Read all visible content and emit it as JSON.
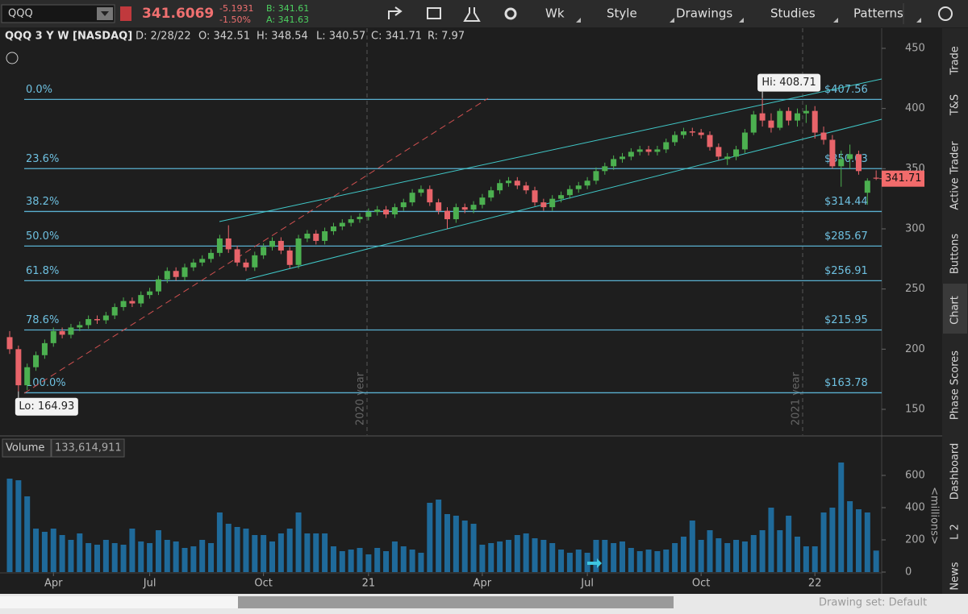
{
  "toolbar": {
    "symbol": "QQQ",
    "last": "341.6069",
    "change": "-5.1931",
    "change_pct": "-1.50%",
    "bid": "B: 341.61",
    "ask": "A: 341.63",
    "buttons": [
      "Wk",
      "Style",
      "Drawings",
      "Studies",
      "Patterns"
    ]
  },
  "header": {
    "title": "QQQ 3 Y W [NASDAQ]",
    "fields": [
      "D: 2/28/22",
      "O: 342.51",
      "H: 348.54",
      "L: 340.57",
      "C: 341.71",
      "R: 7.97"
    ]
  },
  "sidebar": [
    "Trade",
    "T&S",
    "Active Trader",
    "Buttons",
    "Chart",
    "Phase Scores",
    "Dashboard",
    "L 2",
    "News"
  ],
  "footer": {
    "drawing_set": "Drawing set: Default"
  },
  "chart_data": [
    {
      "type": "candlestick",
      "up_color": "#4cb050",
      "down_color": "#e8646a",
      "ylim": [
        128.57,
        466.74
      ],
      "yticks": [
        150,
        200,
        250,
        300,
        350,
        400,
        450
      ],
      "hi_label": "Hi: 408.71",
      "lo_label": "Lo: 164.93",
      "year_labels": [
        "2020 year",
        "2021 year"
      ],
      "fib_levels": [
        {
          "label": "0.0%",
          "value": 407.56,
          "price_label": "$407.56"
        },
        {
          "label": "23.6%",
          "value": 350.03,
          "price_label": "$350.03"
        },
        {
          "label": "38.2%",
          "value": 314.44,
          "price_label": "$314.44"
        },
        {
          "label": "50.0%",
          "value": 285.67,
          "price_label": "$285.67"
        },
        {
          "label": "61.8%",
          "value": 256.91,
          "price_label": "$256.91"
        },
        {
          "label": "78.6%",
          "value": 215.95,
          "price_label": "$215.95"
        },
        {
          "label": "100.0%",
          "value": 163.78,
          "price_label": "$163.78"
        }
      ],
      "ohlc": [
        [
          210,
          215,
          196,
          200
        ],
        [
          200,
          203,
          164.93,
          170
        ],
        [
          170,
          188,
          166,
          185
        ],
        [
          185,
          198,
          182,
          195
        ],
        [
          195,
          208,
          192,
          205
        ],
        [
          205,
          218,
          202,
          215
        ],
        [
          215,
          218,
          209,
          212
        ],
        [
          212,
          221,
          209,
          218
        ],
        [
          218,
          223,
          215,
          220
        ],
        [
          220,
          228,
          217,
          225
        ],
        [
          225,
          228,
          221,
          224
        ],
        [
          224,
          231,
          221,
          228
        ],
        [
          228,
          238,
          225,
          235
        ],
        [
          235,
          243,
          232,
          240
        ],
        [
          240,
          243,
          235,
          238
        ],
        [
          238,
          248,
          235,
          245
        ],
        [
          245,
          251,
          242,
          248
        ],
        [
          248,
          261,
          245,
          258
        ],
        [
          258,
          268,
          255,
          265
        ],
        [
          265,
          268,
          257,
          260
        ],
        [
          260,
          271,
          257,
          268
        ],
        [
          268,
          275,
          265,
          272
        ],
        [
          272,
          278,
          269,
          275
        ],
        [
          275,
          283,
          272,
          280
        ],
        [
          280,
          295,
          277,
          292
        ],
        [
          292,
          303,
          280,
          283
        ],
        [
          283,
          286,
          269,
          272
        ],
        [
          272,
          275,
          265,
          268
        ],
        [
          268,
          281,
          265,
          278
        ],
        [
          278,
          288,
          275,
          285
        ],
        [
          285,
          293,
          282,
          290
        ],
        [
          290,
          293,
          279,
          282
        ],
        [
          282,
          285,
          267,
          270
        ],
        [
          270,
          295,
          267,
          292
        ],
        [
          292,
          299,
          289,
          296
        ],
        [
          296,
          299,
          287,
          290
        ],
        [
          290,
          301,
          287,
          298
        ],
        [
          298,
          305,
          295,
          302
        ],
        [
          302,
          308,
          299,
          305
        ],
        [
          305,
          311,
          302,
          308
        ],
        [
          308,
          313,
          305,
          310
        ],
        [
          310,
          317,
          307,
          314
        ],
        [
          314,
          319,
          311,
          316
        ],
        [
          316,
          319,
          309,
          312
        ],
        [
          312,
          321,
          309,
          318
        ],
        [
          318,
          325,
          315,
          322
        ],
        [
          322,
          333,
          319,
          330
        ],
        [
          330,
          336,
          327,
          333
        ],
        [
          333,
          336,
          319,
          322
        ],
        [
          322,
          325,
          312,
          315
        ],
        [
          315,
          318,
          300,
          308
        ],
        [
          308,
          321,
          305,
          318
        ],
        [
          318,
          321,
          313,
          316
        ],
        [
          316,
          323,
          313,
          320
        ],
        [
          320,
          329,
          317,
          326
        ],
        [
          326,
          335,
          323,
          332
        ],
        [
          332,
          341,
          329,
          338
        ],
        [
          338,
          343,
          335,
          340
        ],
        [
          340,
          343,
          333,
          336
        ],
        [
          336,
          339,
          329,
          332
        ],
        [
          332,
          335,
          319,
          322
        ],
        [
          322,
          325,
          315,
          318
        ],
        [
          318,
          328,
          315,
          325
        ],
        [
          325,
          331,
          322,
          328
        ],
        [
          328,
          336,
          325,
          333
        ],
        [
          333,
          339,
          330,
          336
        ],
        [
          336,
          343,
          333,
          340
        ],
        [
          340,
          351,
          337,
          348
        ],
        [
          348,
          355,
          345,
          352
        ],
        [
          352,
          361,
          349,
          358
        ],
        [
          358,
          363,
          355,
          360
        ],
        [
          360,
          367,
          357,
          364
        ],
        [
          364,
          369,
          361,
          366
        ],
        [
          366,
          369,
          361,
          364
        ],
        [
          364,
          369,
          361,
          366
        ],
        [
          366,
          375,
          363,
          372
        ],
        [
          372,
          381,
          369,
          378
        ],
        [
          378,
          384,
          375,
          381
        ],
        [
          381,
          384,
          377,
          380
        ],
        [
          380,
          383,
          375,
          378
        ],
        [
          378,
          381,
          365,
          368
        ],
        [
          368,
          371,
          357,
          360
        ],
        [
          358,
          363,
          353,
          360
        ],
        [
          360,
          369,
          357,
          366
        ],
        [
          366,
          383,
          363,
          380
        ],
        [
          380,
          398,
          378,
          395
        ],
        [
          396,
          408.71,
          385,
          390
        ],
        [
          390,
          396,
          380,
          384
        ],
        [
          384,
          400,
          382,
          398
        ],
        [
          398,
          401,
          386,
          390
        ],
        [
          390,
          400,
          385,
          396
        ],
        [
          396,
          403,
          388,
          398
        ],
        [
          398,
          402,
          375,
          380
        ],
        [
          380,
          385,
          370,
          374
        ],
        [
          374,
          378,
          350,
          352
        ],
        [
          352,
          365,
          335,
          358
        ],
        [
          358,
          370,
          350,
          362
        ],
        [
          362,
          365,
          345,
          348
        ],
        [
          330,
          342,
          320,
          340
        ],
        [
          342.51,
          348.54,
          340.57,
          341.71
        ]
      ]
    },
    {
      "type": "bar",
      "title": "Volume",
      "current": "133,614,911",
      "y_axis_label": "<millions>",
      "color": "#1f6a9a",
      "ylim": [
        0,
        825
      ],
      "yticks": [
        0,
        200,
        400,
        600
      ],
      "categories": [
        null,
        null,
        null,
        null,
        null,
        "Apr",
        null,
        null,
        null,
        null,
        null,
        null,
        null,
        null,
        null,
        null,
        "Jul",
        null,
        null,
        null,
        null,
        null,
        null,
        null,
        null,
        null,
        null,
        null,
        null,
        "Oct",
        null,
        null,
        null,
        null,
        null,
        null,
        null,
        null,
        null,
        null,
        null,
        "21",
        null,
        null,
        null,
        null,
        null,
        null,
        null,
        null,
        null,
        null,
        null,
        null,
        "Apr",
        null,
        null,
        null,
        null,
        null,
        null,
        null,
        null,
        null,
        null,
        null,
        "Jul",
        null,
        null,
        null,
        null,
        null,
        null,
        null,
        null,
        null,
        null,
        null,
        null,
        "Oct",
        null,
        null,
        null,
        null,
        null,
        null,
        null,
        null,
        null,
        null,
        null,
        null,
        "22",
        null,
        null,
        null,
        null,
        null,
        null,
        null
      ],
      "values": [
        580,
        570,
        470,
        270,
        250,
        270,
        230,
        200,
        240,
        180,
        170,
        200,
        180,
        170,
        270,
        190,
        180,
        260,
        200,
        190,
        150,
        160,
        200,
        180,
        370,
        300,
        280,
        270,
        230,
        230,
        190,
        240,
        270,
        370,
        240,
        240,
        240,
        160,
        130,
        140,
        150,
        110,
        150,
        130,
        190,
        160,
        140,
        120,
        430,
        450,
        360,
        350,
        320,
        300,
        170,
        180,
        190,
        200,
        230,
        240,
        210,
        200,
        180,
        140,
        120,
        140,
        120,
        200,
        200,
        180,
        190,
        150,
        130,
        140,
        130,
        140,
        180,
        220,
        320,
        200,
        260,
        210,
        180,
        200,
        190,
        230,
        260,
        400,
        260,
        350,
        220,
        160,
        160,
        370,
        400,
        680,
        440,
        390,
        370,
        133.614911
      ]
    }
  ]
}
